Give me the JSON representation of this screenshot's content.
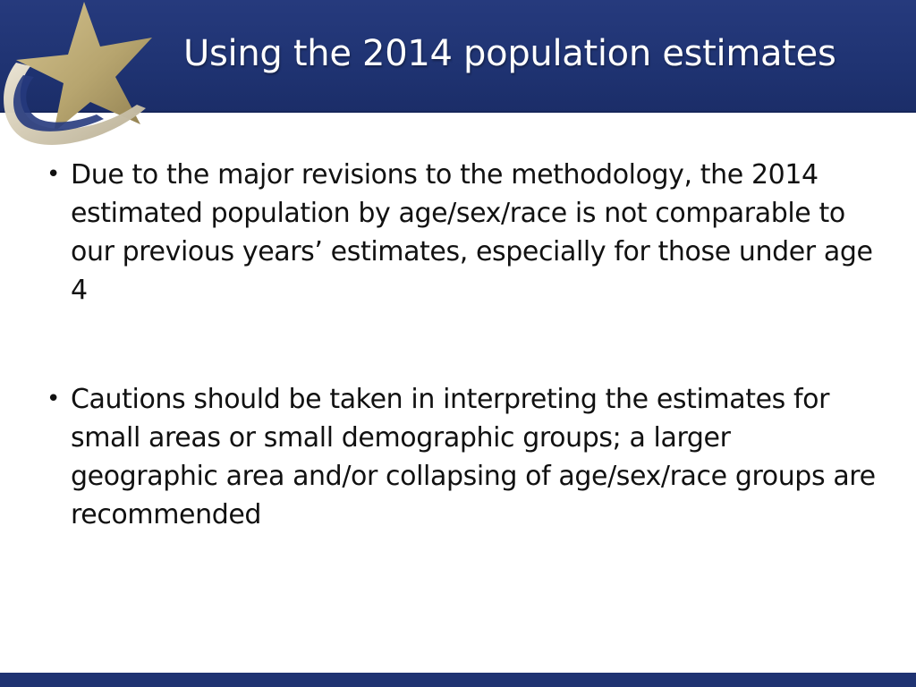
{
  "slide": {
    "title": "Using the 2014 population estimates",
    "bullets": [
      "Due to the major revisions to the methodology, the 2014 estimated population by age/sex/race is not comparable to our previous years’ estimates, especially for those under age 4",
      "Cautions should be taken in interpreting the estimates for small areas or small demographic groups; a larger geographic area and/or collapsing of age/sex/race groups are recommended"
    ],
    "bullet_glyph": "•"
  },
  "colors": {
    "header_band": "#1f3372",
    "logo_star": "#b7a56f",
    "logo_swoosh": "#c9c0a8",
    "title_text": "#ffffff",
    "body_text": "#111111",
    "bottom_bar": "#1f3372"
  },
  "icons": {
    "logo": "gold-star-swoosh-logo-icon"
  }
}
